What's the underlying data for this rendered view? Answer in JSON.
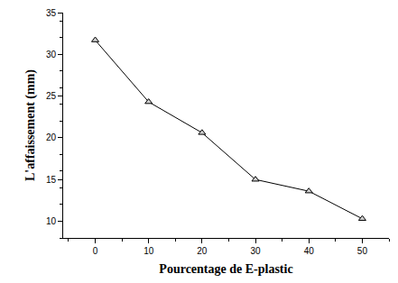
{
  "chart_data": {
    "type": "line",
    "x_label": "Pourcentage de E-plastic",
    "y_label": "L'affaissement (mm)",
    "x": [
      0,
      10,
      20,
      30,
      40,
      50
    ],
    "values": [
      31.7,
      24.3,
      20.6,
      15.0,
      13.6,
      10.3
    ],
    "color": "#000000",
    "marker": "triangle-up",
    "line_style": "solid",
    "xlim": [
      -6,
      55
    ],
    "ylim": [
      8,
      35
    ],
    "xticks": [
      0,
      10,
      20,
      30,
      40,
      50
    ],
    "yticks": [
      10,
      15,
      20,
      25,
      30,
      35
    ],
    "grid": false
  }
}
